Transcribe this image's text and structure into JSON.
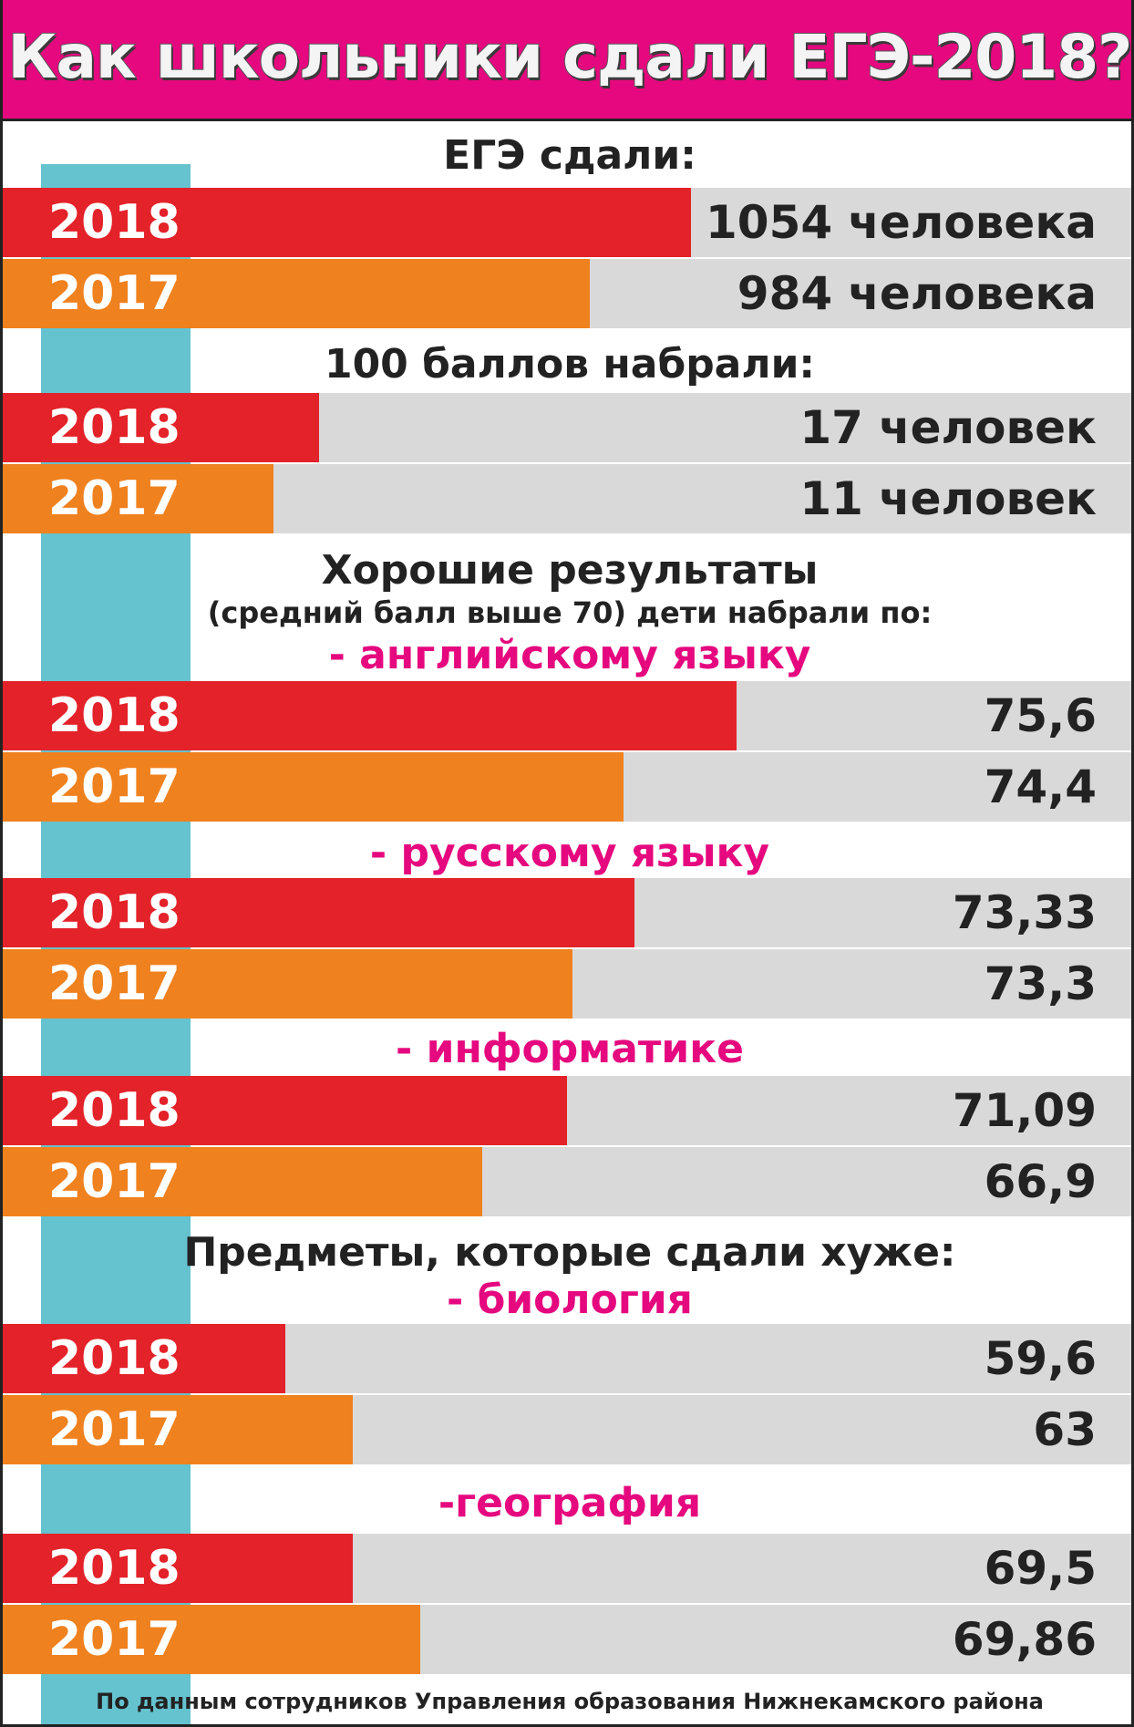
{
  "title": "Как школьники сдали ЕГЭ-2018?",
  "source_note": "По данным сотрудников Управления образования Нижнекамского района",
  "colors": {
    "header_bg": "#e5087e",
    "year_2018": "#e32229",
    "year_2017": "#ef811e",
    "rail": "#65c2cf",
    "track": "#d9d9d9",
    "subheading": "#e5087e"
  },
  "chart_data": {
    "type": "bar",
    "orientation": "horizontal",
    "headings": [
      "ЕГЭ сдали:",
      "100 баллов набрали:",
      "Хорошие результаты",
      "(средний балл выше 70) дети набрали по:",
      "- английскому языку",
      "- русскому языку",
      "- информатике",
      "Предметы, которые сдали хуже:",
      "- биология",
      "-география"
    ],
    "groups": [
      {
        "rows": [
          {
            "year": "2018",
            "value": 1054,
            "label": "1054 человека"
          },
          {
            "year": "2017",
            "value": 984,
            "label": "984 человека"
          }
        ]
      },
      {
        "rows": [
          {
            "year": "2018",
            "value": 17,
            "label": "17 человек"
          },
          {
            "year": "2017",
            "value": 11,
            "label": "11 человек"
          }
        ]
      },
      {
        "rows": [
          {
            "year": "2018",
            "value": 75.6,
            "label": "75,6"
          },
          {
            "year": "2017",
            "value": 74.4,
            "label": "74,4"
          }
        ]
      },
      {
        "rows": [
          {
            "year": "2018",
            "value": 73.33,
            "label": "73,33"
          },
          {
            "year": "2017",
            "value": 73.3,
            "label": "73,3"
          }
        ]
      },
      {
        "rows": [
          {
            "year": "2018",
            "value": 71.09,
            "label": "71,09"
          },
          {
            "year": "2017",
            "value": 66.9,
            "label": "66,9"
          }
        ]
      },
      {
        "rows": [
          {
            "year": "2018",
            "value": 59.6,
            "label": "59,6"
          },
          {
            "year": "2017",
            "value": 63,
            "label": "63"
          }
        ]
      },
      {
        "rows": [
          {
            "year": "2018",
            "value": 69.5,
            "label": "69,5"
          },
          {
            "year": "2017",
            "value": 69.86,
            "label": "69,86"
          }
        ]
      }
    ],
    "bar_fill": [
      0.61,
      0.52,
      0.28,
      0.24,
      0.65,
      0.55,
      0.56,
      0.505,
      0.5,
      0.425,
      0.25,
      0.31,
      0.31,
      0.37
    ]
  }
}
